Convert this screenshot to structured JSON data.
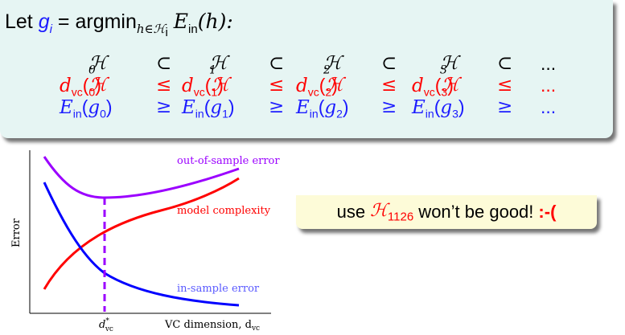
{
  "definition": {
    "prefix": "Let",
    "g": "g",
    "g_sub": "i",
    "equals": " = argmin",
    "argmin_sub": "h∈ℋ",
    "argmin_sub_sub": "i",
    "E": "E",
    "E_sub": "in",
    "arg": "(h):"
  },
  "rows": {
    "hypotheses": [
      "ℋ",
      "ℋ",
      "ℋ",
      "ℋ"
    ],
    "indices": [
      "0",
      "1",
      "2",
      "3"
    ],
    "subset_symbol": "⊂",
    "le_symbol": "≤",
    "ge_symbol": "≥",
    "ellipsis": "...",
    "dvc_label": "d",
    "dvc_sub": "vc",
    "ein_label": "E",
    "ein_sub": "in",
    "g_label": "g"
  },
  "chart_data": {
    "type": "line",
    "ylabel": "Error",
    "xlabel": "VC dimension, d",
    "xlabel_sub": "vc",
    "marker_label": "d",
    "marker_sub": "vc",
    "marker_sup": "*",
    "series": [
      {
        "name": "out-of-sample error",
        "color": "#9b00ff"
      },
      {
        "name": "model complexity",
        "color": "#ff0000"
      },
      {
        "name": "in-sample error",
        "color": "#0000ff"
      }
    ],
    "grid": false
  },
  "note": {
    "prefix": "use ",
    "symbol": "ℋ",
    "symbol_sub": "1126",
    "suffix": " won’t be good!",
    "face": ":-("
  },
  "colors": {
    "box_bg": "#e6f5f3",
    "note_bg": "#fdfbd8",
    "blue_text": "#1b1bff",
    "red_text": "#ff0000"
  }
}
